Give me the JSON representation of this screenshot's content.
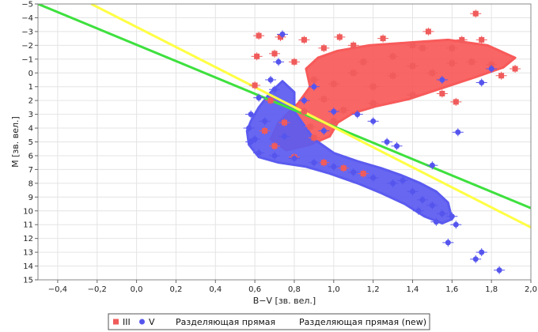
{
  "chart_data": {
    "type": "scatter",
    "xlabel": "B−V [зв. вел.]",
    "ylabel": "M [зв. вел.]",
    "xlim": [
      -0.5,
      2.0
    ],
    "ylim": [
      -5,
      15
    ],
    "y_inverted": true,
    "x_ticks": [
      -0.4,
      -0.2,
      0.0,
      0.2,
      0.4,
      0.6,
      0.8,
      1.0,
      1.2,
      1.4,
      1.6,
      1.8,
      2.0
    ],
    "x_tick_labels": [
      "−0,4",
      "−0,2",
      "0,0",
      "0,2",
      "0,4",
      "0,6",
      "0,8",
      "1,0",
      "1,2",
      "1,4",
      "1,6",
      "1,8",
      "2,0"
    ],
    "y_ticks": [
      -5,
      -4,
      -3,
      -2,
      -1,
      0,
      1,
      2,
      3,
      4,
      5,
      6,
      7,
      8,
      9,
      10,
      11,
      12,
      13,
      14,
      15
    ],
    "y_tick_labels": [
      "−5",
      "−4",
      "−3",
      "−2",
      "−1",
      "0",
      "1",
      "2",
      "3",
      "4",
      "5",
      "6",
      "7",
      "8",
      "9",
      "10",
      "11",
      "12",
      "13",
      "14",
      "15"
    ],
    "grid": true,
    "legend_position": "bottom-center",
    "series": [
      {
        "name": "III",
        "kind": "points",
        "marker": "square",
        "color": "#f05b5b",
        "points": [
          [
            1.72,
            -4.3
          ],
          [
            0.62,
            -2.7
          ],
          [
            0.73,
            -2.6
          ],
          [
            0.61,
            -1.2
          ],
          [
            0.7,
            -1.4
          ],
          [
            0.8,
            -0.8
          ],
          [
            0.85,
            -2.4
          ],
          [
            1.03,
            -2.6
          ],
          [
            1.25,
            -2.5
          ],
          [
            1.48,
            -3.0
          ],
          [
            1.65,
            -2.4
          ],
          [
            1.75,
            -2.4
          ],
          [
            1.92,
            -0.3
          ],
          [
            1.85,
            0.2
          ],
          [
            1.6,
            -1.8
          ],
          [
            1.4,
            -2.0
          ],
          [
            1.1,
            -2.0
          ],
          [
            0.95,
            -1.8
          ],
          [
            0.9,
            0.5
          ],
          [
            1.0,
            0.8
          ],
          [
            1.1,
            0.0
          ],
          [
            1.2,
            1.0
          ],
          [
            1.3,
            0.2
          ],
          [
            1.4,
            -0.5
          ],
          [
            1.5,
            0.0
          ],
          [
            1.6,
            -0.7
          ],
          [
            1.7,
            -0.8
          ],
          [
            1.8,
            -0.6
          ],
          [
            1.55,
            1.5
          ],
          [
            1.62,
            2.1
          ],
          [
            1.4,
            1.6
          ],
          [
            0.85,
            2.8
          ],
          [
            0.75,
            3.6
          ],
          [
            0.65,
            4.2
          ],
          [
            0.7,
            5.3
          ],
          [
            0.8,
            6.1
          ],
          [
            0.95,
            6.5
          ],
          [
            1.05,
            6.9
          ],
          [
            1.15,
            7.3
          ],
          [
            1.0,
            3.5
          ],
          [
            0.9,
            4.7
          ],
          [
            1.2,
            2.2
          ],
          [
            0.6,
            0.9
          ],
          [
            0.68,
            2.0
          ],
          [
            1.3,
            -1.2
          ],
          [
            1.45,
            -1.8
          ],
          [
            1.15,
            -0.8
          ],
          [
            0.95,
            1.9
          ],
          [
            1.05,
            2.7
          ],
          [
            0.88,
            3.9
          ]
        ]
      },
      {
        "name": "V",
        "kind": "points",
        "marker": "circle",
        "color": "#5555ee",
        "points": [
          [
            0.74,
            -2.8
          ],
          [
            0.72,
            -0.8
          ],
          [
            0.68,
            0.5
          ],
          [
            0.7,
            1.2
          ],
          [
            0.62,
            1.8
          ],
          [
            0.58,
            3.0
          ],
          [
            0.57,
            4.0
          ],
          [
            0.58,
            5.0
          ],
          [
            0.62,
            5.8
          ],
          [
            0.7,
            6.0
          ],
          [
            0.8,
            6.2
          ],
          [
            0.9,
            6.5
          ],
          [
            1.0,
            6.8
          ],
          [
            1.1,
            7.2
          ],
          [
            1.2,
            7.6
          ],
          [
            1.3,
            8.0
          ],
          [
            1.4,
            8.6
          ],
          [
            1.45,
            9.2
          ],
          [
            1.5,
            9.6
          ],
          [
            1.55,
            10.2
          ],
          [
            1.6,
            10.4
          ],
          [
            1.62,
            11.0
          ],
          [
            1.58,
            12.3
          ],
          [
            1.75,
            13.0
          ],
          [
            1.72,
            13.5
          ],
          [
            1.84,
            14.3
          ],
          [
            1.63,
            4.3
          ],
          [
            1.32,
            5.3
          ],
          [
            1.5,
            6.7
          ],
          [
            1.27,
            5.0
          ],
          [
            1.55,
            0.5
          ],
          [
            1.8,
            -0.3
          ],
          [
            1.75,
            0.7
          ],
          [
            0.9,
            1.0
          ],
          [
            1.0,
            2.8
          ],
          [
            0.65,
            3.5
          ],
          [
            0.75,
            4.6
          ],
          [
            1.12,
            3.0
          ],
          [
            1.2,
            3.5
          ],
          [
            1.35,
            7.8
          ],
          [
            1.43,
            10.0
          ],
          [
            1.52,
            10.8
          ],
          [
            0.85,
            2.0
          ],
          [
            0.95,
            4.2
          ],
          [
            0.6,
            4.8
          ]
        ]
      },
      {
        "name": "Разделяющая прямая",
        "kind": "line",
        "color": "#3ee03e",
        "points": [
          [
            -0.5,
            -5.0
          ],
          [
            2.0,
            9.8
          ]
        ]
      },
      {
        "name": "Разделяющая прямая (new)",
        "kind": "line",
        "color": "#ffff44",
        "points": [
          [
            -0.23,
            -5.0
          ],
          [
            2.0,
            11.2
          ]
        ]
      }
    ],
    "clouds": [
      {
        "series": "III",
        "color": "#f85a5a",
        "description_points": [
          [
            0.68,
            4.8
          ],
          [
            0.72,
            3.6
          ],
          [
            0.82,
            2.2
          ],
          [
            0.88,
            1.0
          ],
          [
            0.86,
            -0.3
          ],
          [
            0.92,
            -1.1
          ],
          [
            1.02,
            -1.6
          ],
          [
            1.18,
            -2.0
          ],
          [
            1.38,
            -2.2
          ],
          [
            1.58,
            -2.4
          ],
          [
            1.78,
            -2.0
          ],
          [
            1.92,
            -1.1
          ],
          [
            1.86,
            -0.4
          ],
          [
            1.72,
            0.3
          ],
          [
            1.55,
            1.1
          ],
          [
            1.38,
            1.9
          ],
          [
            1.22,
            2.4
          ],
          [
            1.1,
            2.9
          ],
          [
            1.02,
            3.6
          ],
          [
            0.98,
            4.6
          ],
          [
            0.88,
            5.2
          ],
          [
            0.76,
            5.6
          ]
        ]
      },
      {
        "series": "V",
        "color": "#5b5bf0",
        "description_points": [
          [
            0.58,
            3.5
          ],
          [
            0.62,
            2.5
          ],
          [
            0.68,
            1.4
          ],
          [
            0.74,
            0.6
          ],
          [
            0.8,
            1.4
          ],
          [
            0.8,
            2.8
          ],
          [
            0.9,
            4.8
          ],
          [
            1.0,
            5.8
          ],
          [
            1.12,
            6.4
          ],
          [
            1.24,
            6.9
          ],
          [
            1.34,
            7.4
          ],
          [
            1.44,
            8.0
          ],
          [
            1.52,
            8.6
          ],
          [
            1.58,
            9.4
          ],
          [
            1.6,
            10.6
          ],
          [
            1.55,
            10.9
          ],
          [
            1.46,
            10.4
          ],
          [
            1.36,
            9.5
          ],
          [
            1.24,
            8.7
          ],
          [
            1.12,
            8.0
          ],
          [
            0.98,
            7.3
          ],
          [
            0.86,
            6.8
          ],
          [
            0.72,
            6.5
          ],
          [
            0.62,
            6.1
          ],
          [
            0.57,
            5.2
          ],
          [
            0.56,
            4.2
          ]
        ]
      }
    ]
  },
  "legend": {
    "items": [
      {
        "label": "III",
        "marker": "square",
        "color": "#f05b5b"
      },
      {
        "label": "V",
        "marker": "circle",
        "color": "#5555ee"
      },
      {
        "label": "Разделяющая прямая",
        "marker": "none",
        "color": "#3ee03e"
      },
      {
        "label": "Разделяющая прямая (new)",
        "marker": "none",
        "color": "#ffff44"
      }
    ]
  }
}
